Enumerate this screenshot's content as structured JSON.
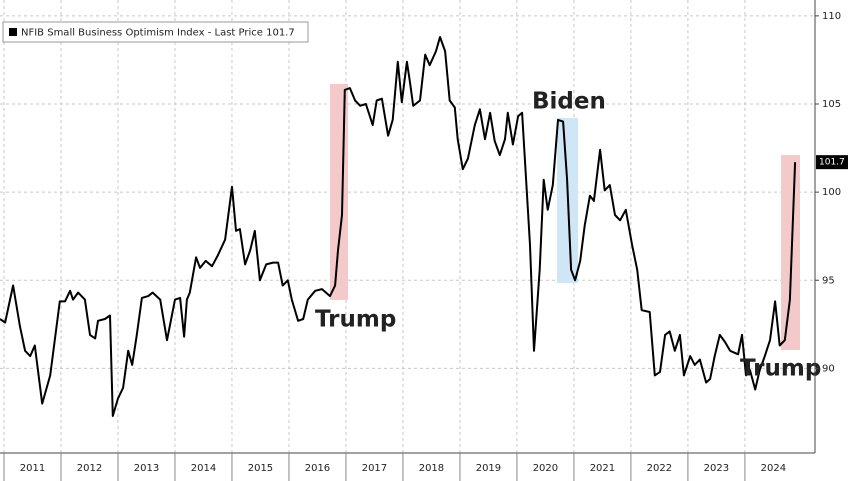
{
  "chart_data": {
    "type": "line",
    "series": [
      {
        "name": "NFIB Small Business Optimism Index - Last Price 101.7",
        "color": "#000000",
        "x": [
          2010.93,
          2011.02,
          2011.16,
          2011.28,
          2011.37,
          2011.46,
          2011.54,
          2011.67,
          2011.81,
          2011.98,
          2012.07,
          2012.16,
          2012.21,
          2012.3,
          2012.42,
          2012.51,
          2012.6,
          2012.65,
          2012.77,
          2012.86,
          2012.91,
          2013.0,
          2013.09,
          2013.18,
          2013.25,
          2013.33,
          2013.42,
          2013.53,
          2013.61,
          2013.74,
          2013.86,
          2013.91,
          2014.0,
          2014.09,
          2014.16,
          2014.21,
          2014.26,
          2014.37,
          2014.44,
          2014.54,
          2014.65,
          2014.75,
          2014.88,
          2015.0,
          2015.07,
          2015.14,
          2015.23,
          2015.32,
          2015.4,
          2015.49,
          2015.6,
          2015.72,
          2015.81,
          2015.89,
          2015.98,
          2016.05,
          2016.16,
          2016.25,
          2016.33,
          2016.46,
          2016.58,
          2016.72,
          2016.81,
          2016.86,
          2016.93,
          2016.98,
          2017.07,
          2017.16,
          2017.25,
          2017.35,
          2017.47,
          2017.54,
          2017.63,
          2017.74,
          2017.82,
          2017.91,
          2017.98,
          2018.07,
          2018.12,
          2018.18,
          2018.3,
          2018.39,
          2018.47,
          2018.58,
          2018.65,
          2018.74,
          2018.82,
          2018.91,
          2018.96,
          2019.05,
          2019.14,
          2019.26,
          2019.35,
          2019.44,
          2019.53,
          2019.61,
          2019.7,
          2019.79,
          2019.84,
          2019.93,
          2020.02,
          2020.09,
          2020.23,
          2020.3,
          2020.4,
          2020.47,
          2020.54,
          2020.63,
          2020.72,
          2020.81,
          2020.88,
          2020.95,
          2021.02,
          2021.11,
          2021.19,
          2021.28,
          2021.35,
          2021.46,
          2021.54,
          2021.63,
          2021.72,
          2021.81,
          2021.91,
          2022.02,
          2022.11,
          2022.19,
          2022.33,
          2022.42,
          2022.51,
          2022.6,
          2022.68,
          2022.77,
          2022.86,
          2022.93,
          2023.04,
          2023.12,
          2023.21,
          2023.32,
          2023.39,
          2023.47,
          2023.56,
          2023.65,
          2023.74,
          2023.88,
          2023.95,
          2024.02,
          2024.09,
          2024.18,
          2024.26,
          2024.35,
          2024.44,
          2024.53,
          2024.61,
          2024.7,
          2024.79,
          2024.88
        ],
        "values": [
          92.8,
          92.6,
          94.7,
          92.4,
          91.0,
          90.7,
          91.3,
          88.0,
          89.6,
          93.8,
          93.8,
          94.4,
          93.9,
          94.3,
          93.9,
          91.9,
          91.7,
          92.7,
          92.8,
          93.0,
          87.3,
          88.3,
          88.9,
          91.0,
          90.2,
          91.9,
          94.0,
          94.1,
          94.3,
          93.9,
          91.6,
          92.4,
          93.9,
          94.0,
          91.8,
          93.9,
          94.3,
          96.3,
          95.7,
          96.1,
          95.8,
          96.4,
          97.3,
          100.3,
          97.8,
          97.9,
          95.9,
          96.7,
          97.8,
          95.0,
          95.9,
          96.0,
          96.0,
          94.7,
          95.0,
          93.9,
          92.7,
          92.8,
          93.9,
          94.4,
          94.5,
          94.1,
          94.7,
          96.7,
          98.7,
          105.8,
          105.9,
          105.2,
          104.9,
          105.0,
          103.8,
          105.2,
          105.3,
          103.2,
          104.1,
          107.4,
          105.1,
          107.4,
          106.3,
          104.9,
          105.2,
          107.8,
          107.2,
          108.0,
          108.8,
          108.0,
          105.2,
          104.8,
          103.0,
          101.3,
          101.9,
          103.8,
          104.7,
          103.0,
          104.5,
          102.9,
          102.1,
          103.0,
          104.5,
          102.7,
          104.3,
          104.5,
          97.0,
          91.0,
          95.6,
          100.7,
          99.0,
          100.4,
          104.1,
          104.0,
          100.7,
          95.6,
          95.0,
          96.1,
          98.1,
          99.8,
          99.5,
          102.4,
          100.1,
          100.4,
          98.7,
          98.4,
          99.0,
          97.0,
          95.6,
          93.3,
          93.2,
          89.6,
          89.8,
          91.9,
          92.1,
          91.0,
          91.9,
          89.6,
          90.7,
          90.2,
          90.5,
          89.2,
          89.4,
          90.7,
          91.9,
          91.5,
          91.0,
          90.8,
          91.9,
          89.6,
          89.9,
          88.8,
          89.9,
          90.7,
          91.6,
          93.8,
          91.3,
          91.6,
          93.9,
          101.7
        ]
      }
    ],
    "xlim": [
      2010.93,
      2025.23
    ],
    "xticks": [
      {
        "value": 2011.5,
        "label": "2011"
      },
      {
        "value": 2012.5,
        "label": "2012"
      },
      {
        "value": 2013.5,
        "label": "2013"
      },
      {
        "value": 2014.5,
        "label": "2014"
      },
      {
        "value": 2015.5,
        "label": "2015"
      },
      {
        "value": 2016.5,
        "label": "2016"
      },
      {
        "value": 2017.5,
        "label": "2017"
      },
      {
        "value": 2018.5,
        "label": "2018"
      },
      {
        "value": 2019.5,
        "label": "2019"
      },
      {
        "value": 2020.5,
        "label": "2020"
      },
      {
        "value": 2021.5,
        "label": "2021"
      },
      {
        "value": 2022.5,
        "label": "2022"
      },
      {
        "value": 2023.5,
        "label": "2023"
      },
      {
        "value": 2024.5,
        "label": "2024"
      }
    ],
    "ylim": [
      85.2,
      110.9
    ],
    "yticks": [
      90,
      95,
      100,
      105,
      110
    ],
    "grid": true,
    "legend": "upper left",
    "annotations": [
      {
        "text": "Trump",
        "color": "#c1272d"
      },
      {
        "text": "Biden",
        "color": "#3a9bd9"
      },
      {
        "text": "Trump",
        "color": "#c1272d"
      }
    ]
  }
}
